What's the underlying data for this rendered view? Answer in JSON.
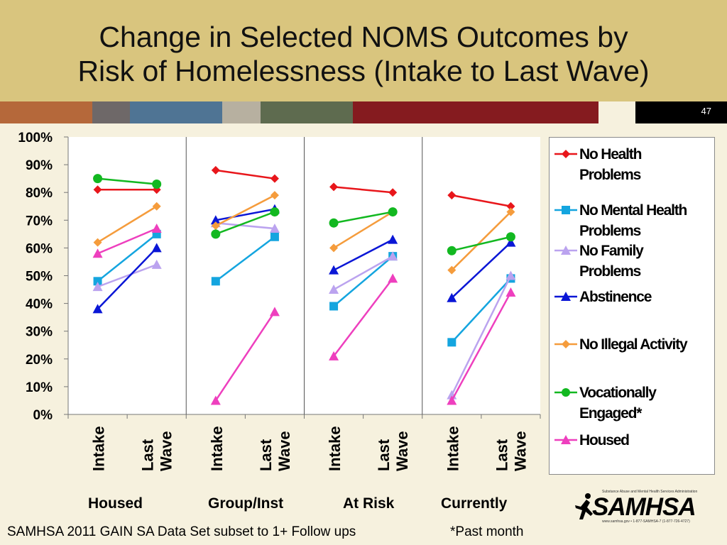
{
  "header": {
    "title_line1": "Change in Selected NOMS Outcomes by",
    "title_line2": "Risk of Homelessness (Intake to Last Wave)",
    "slide_number": "47",
    "stripe_colors": [
      "#b5683a",
      "#6e6868",
      "#4f7494",
      "#b7b0a0",
      "#5e6b4f",
      "#851b1f",
      "#f6f1de",
      "#000000"
    ]
  },
  "chart_data": {
    "type": "line",
    "title": "",
    "ylim": [
      0,
      100
    ],
    "y_ticks": [
      "0%",
      "10%",
      "20%",
      "30%",
      "40%",
      "50%",
      "60%",
      "70%",
      "80%",
      "90%",
      "100%"
    ],
    "groups": [
      "Housed",
      "Group/Inst",
      "At Risk",
      "Currently"
    ],
    "x_labels": [
      {
        "line1": "Intake",
        "line2": ""
      },
      {
        "line1": "Last",
        "line2": "Wave"
      }
    ],
    "series": [
      {
        "name": "No Health Problems",
        "legend_lines": [
          "No Health",
          "Problems"
        ],
        "color": "#e8161b",
        "marker": "diamond",
        "values": [
          [
            81,
            81
          ],
          [
            88,
            85
          ],
          [
            82,
            80
          ],
          [
            79,
            75
          ]
        ]
      },
      {
        "name": "No Mental Health Problems",
        "legend_lines": [
          "No Mental Health",
          "Problems"
        ],
        "color": "#14a5df",
        "marker": "square",
        "values": [
          [
            48,
            65
          ],
          [
            48,
            64
          ],
          [
            39,
            57
          ],
          [
            26,
            49
          ]
        ]
      },
      {
        "name": "No Family Problems",
        "legend_lines": [
          "No Family",
          "Problems"
        ],
        "color": "#bba3ef",
        "marker": "triangle",
        "values": [
          [
            46,
            54
          ],
          [
            69,
            67
          ],
          [
            45,
            57
          ],
          [
            7,
            50
          ]
        ]
      },
      {
        "name": "Abstinence",
        "legend_lines": [
          "Abstinence"
        ],
        "color": "#0a16d6",
        "marker": "triangle",
        "values": [
          [
            38,
            60
          ],
          [
            70,
            74
          ],
          [
            52,
            63
          ],
          [
            42,
            62
          ]
        ]
      },
      {
        "name": "No Illegal Activity",
        "legend_lines": [
          "No Illegal Activity"
        ],
        "color": "#f59c3c",
        "marker": "diamond",
        "values": [
          [
            62,
            75
          ],
          [
            68,
            79
          ],
          [
            60,
            73
          ],
          [
            52,
            73
          ]
        ]
      },
      {
        "name": "Vocationally Engaged*",
        "legend_lines": [
          "Vocationally",
          "Engaged*"
        ],
        "color": "#12b820",
        "marker": "circle",
        "values": [
          [
            85,
            83
          ],
          [
            65,
            73
          ],
          [
            69,
            73
          ],
          [
            59,
            64
          ]
        ]
      },
      {
        "name": "Housed",
        "legend_lines": [
          "Housed"
        ],
        "color": "#ee3fbe",
        "marker": "triangle",
        "values": [
          [
            58,
            67
          ],
          [
            5,
            37
          ],
          [
            21,
            49
          ],
          [
            5,
            44
          ]
        ]
      }
    ]
  },
  "footer": {
    "source": "SAMHSA 2011 GAIN SA Data Set subset to 1+ Follow ups",
    "note": "*Past month"
  },
  "logo": {
    "tagline": "Substance Abuse and Mental Health Services Administration",
    "word": "SAMHSA",
    "sub": "www.samhsa.gov • 1-877-SAMHSA-7 (1-877-726-4727)"
  }
}
